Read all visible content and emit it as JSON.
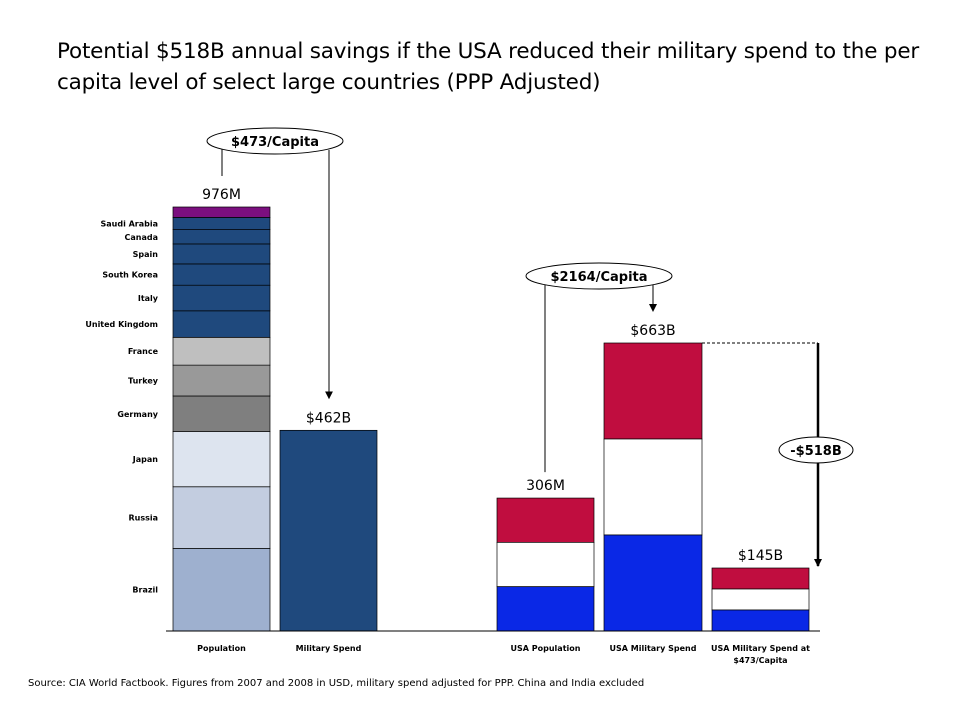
{
  "title": "Potential $518B annual savings if the USA reduced their military spend to the per capita level of select large countries (PPP Adjusted)",
  "source": "Source: CIA World Factbook. Figures from 2007 and 2008 in USD, military spend adjusted for PPP. China and India excluded",
  "chart_data": {
    "type": "bar",
    "stacked": true,
    "categories": [
      "Population",
      "Military Spend",
      "USA Population",
      "USA Military Spend",
      "USA Military Spend at $473/Capita"
    ],
    "population_bar": {
      "total_label": "976M",
      "total": 976,
      "unit": "M",
      "segments": [
        {
          "name": "Brazil",
          "value": 190,
          "color": "#9eb0cf"
        },
        {
          "name": "Russia",
          "value": 142,
          "color": "#c3cde0"
        },
        {
          "name": "Japan",
          "value": 127,
          "color": "#dde4ef"
        },
        {
          "name": "Germany",
          "value": 82,
          "color": "#7f7f7f"
        },
        {
          "name": "Turkey",
          "value": 71,
          "color": "#999999"
        },
        {
          "name": "France",
          "value": 64,
          "color": "#bfbfbf"
        },
        {
          "name": "United Kingdom",
          "value": 61,
          "color": "#1f497d"
        },
        {
          "name": "Italy",
          "value": 59,
          "color": "#1f497d"
        },
        {
          "name": "South Korea",
          "value": 49,
          "color": "#1f497d"
        },
        {
          "name": "Spain",
          "value": 46,
          "color": "#1f497d"
        },
        {
          "name": "Canada",
          "value": 33,
          "color": "#1f497d"
        },
        {
          "name": "Saudi Arabia",
          "value": 28,
          "color": "#1f497d"
        },
        {
          "name": "",
          "value": 24,
          "color": "#7b0f7f"
        }
      ]
    },
    "military_spend": {
      "value": 462,
      "label": "$462B",
      "color": "#1f497d"
    },
    "usa_population": {
      "value": 306,
      "label": "306M",
      "colors": [
        "#c00d3f",
        "#ffffff",
        "#0a28e6"
      ]
    },
    "usa_military_spend": {
      "value": 663,
      "label": "$663B",
      "colors": [
        "#c00d3f",
        "#ffffff",
        "#0a28e6"
      ]
    },
    "usa_military_at_rate": {
      "value": 145,
      "label": "$145B",
      "colors": [
        "#c00d3f",
        "#ffffff",
        "#0a28e6"
      ]
    },
    "annotations": {
      "others_per_capita": "$473/Capita",
      "usa_per_capita": "$2164/Capita",
      "savings": "-$518B"
    },
    "xlabel": "",
    "ylabel": ""
  }
}
